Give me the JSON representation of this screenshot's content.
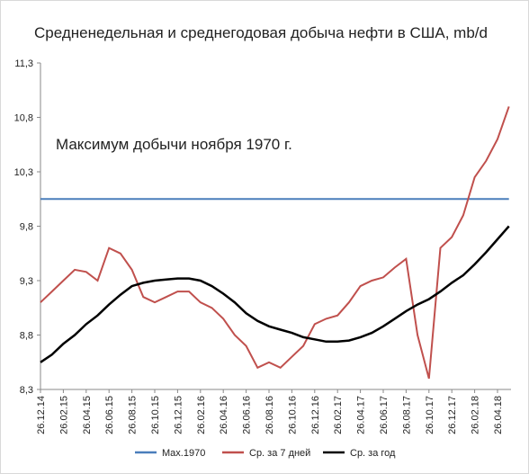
{
  "chart_data": {
    "type": "line",
    "title": "Средненедельная и среднегодовая добыча нефти в США, mb/d",
    "annotation": "Максимум добычи ноября 1970 г.",
    "categories": [
      "26.12.14",
      null,
      "26.02.15",
      null,
      "26.04.15",
      null,
      "26.06.15",
      null,
      "26.08.15",
      null,
      "26.10.15",
      null,
      "26.12.15",
      null,
      "26.02.16",
      null,
      "26.04.16",
      null,
      "26.06.16",
      null,
      "26.08.16",
      null,
      "26.10.16",
      null,
      "26.12.16",
      null,
      "26.02.17",
      null,
      "26.04.17",
      null,
      "26.06.17",
      null,
      "26.08.17",
      null,
      "26.10.17",
      null,
      "26.12.17",
      null,
      "26.02.18",
      null,
      "26.04.18",
      null
    ],
    "series": [
      {
        "name": "Max.1970",
        "color": "#4a7ebb",
        "values": [
          10.05,
          10.05,
          10.05,
          10.05,
          10.05,
          10.05,
          10.05,
          10.05,
          10.05,
          10.05,
          10.05,
          10.05,
          10.05,
          10.05,
          10.05,
          10.05,
          10.05,
          10.05,
          10.05,
          10.05,
          10.05,
          10.05,
          10.05,
          10.05,
          10.05,
          10.05,
          10.05,
          10.05,
          10.05,
          10.05,
          10.05,
          10.05,
          10.05,
          10.05,
          10.05,
          10.05,
          10.05,
          10.05,
          10.05,
          10.05,
          10.05,
          10.05
        ]
      },
      {
        "name": "Ср. за 7 дней",
        "color": "#c0504d",
        "values": [
          9.1,
          9.2,
          9.3,
          9.4,
          9.38,
          9.3,
          9.6,
          9.55,
          9.4,
          9.15,
          9.1,
          9.15,
          9.2,
          9.2,
          9.1,
          9.05,
          8.95,
          8.8,
          8.7,
          8.5,
          8.55,
          8.5,
          8.6,
          8.7,
          8.9,
          8.95,
          8.98,
          9.1,
          9.25,
          9.3,
          9.33,
          9.42,
          9.5,
          8.8,
          8.4,
          9.6,
          9.7,
          9.9,
          10.25,
          10.4,
          10.6,
          10.9
        ]
      },
      {
        "name": "Ср. за год",
        "color": "#000000",
        "values": [
          8.55,
          8.62,
          8.72,
          8.8,
          8.9,
          8.98,
          9.08,
          9.17,
          9.25,
          9.28,
          9.3,
          9.31,
          9.32,
          9.32,
          9.3,
          9.25,
          9.18,
          9.1,
          9.0,
          8.93,
          8.88,
          8.85,
          8.82,
          8.78,
          8.76,
          8.74,
          8.74,
          8.75,
          8.78,
          8.82,
          8.88,
          8.95,
          9.02,
          9.08,
          9.13,
          9.2,
          9.28,
          9.35,
          9.45,
          9.56,
          9.68,
          9.8
        ]
      }
    ],
    "ylim": [
      8.3,
      11.3
    ],
    "yticks": [
      {
        "value": 8.3,
        "label": "8,3"
      },
      {
        "value": 8.8,
        "label": "8,8"
      },
      {
        "value": 9.3,
        "label": "9,3"
      },
      {
        "value": 9.8,
        "label": "9,8"
      },
      {
        "value": 10.3,
        "label": "10,3"
      },
      {
        "value": 10.8,
        "label": "10,8"
      },
      {
        "value": 11.3,
        "label": "11,3"
      }
    ],
    "grid": false,
    "legend": "bottom"
  }
}
